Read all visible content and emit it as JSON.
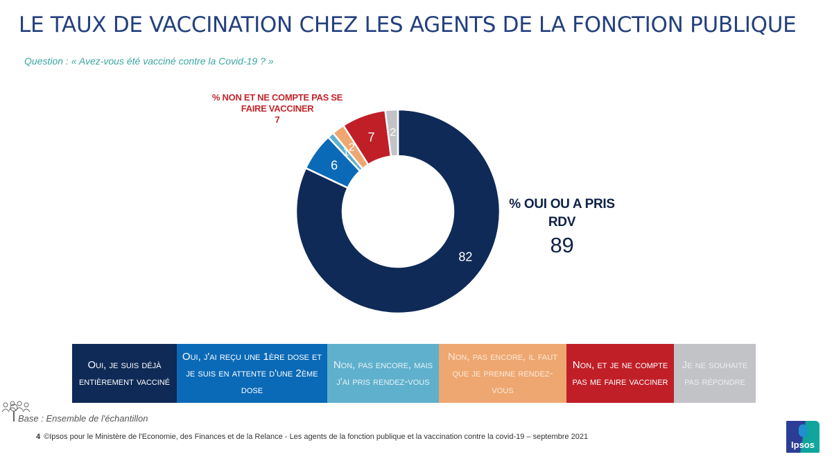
{
  "title": "LE TAUX DE VACCINATION CHEZ LES AGENTS DE LA FONCTION PUBLIQUE",
  "question": "Question : « Avez-vous été vacciné contre la Covid-19 ? »",
  "callouts": {
    "non": {
      "label_line1": "% NON ET NE COMPTE PAS SE",
      "label_line2": "FAIRE VACCINER",
      "value": "7",
      "color": "#c0272d"
    },
    "oui": {
      "label_line1": "% OUI OU A PRIS",
      "label_line2": "RDV",
      "value": "89",
      "color": "#0f2147"
    }
  },
  "chart_data": {
    "type": "pie",
    "variant": "donut",
    "title": "LE TAUX DE VACCINATION CHEZ LES AGENTS DE LA FONCTION PUBLIQUE",
    "start": "12 o'clock, clockwise",
    "categories": [
      "Oui, je suis déjà entièrement vacciné",
      "Oui, j'ai reçu une 1ère dose et je suis en attente d'une 2ème dose",
      "Non, pas encore, mais j'ai pris rendez-vous",
      "Non, pas encore, il faut que je prenne rendez-vous",
      "Non, et je ne compte pas me faire vacciner",
      "Je ne souhaite pas répondre"
    ],
    "values": [
      82,
      6,
      1,
      2,
      7,
      2
    ],
    "labels": [
      "82",
      "6",
      "1",
      "2",
      "7",
      "2"
    ],
    "colors": [
      "#0f2a56",
      "#0b6ab7",
      "#5fb0cc",
      "#eea770",
      "#c01f28",
      "#c2c3c7"
    ],
    "label_colors": [
      "#ffffff",
      "#ffffff",
      "#ffffff",
      "#ffffff",
      "#ffffff",
      "#ffffff"
    ],
    "legend_position": "bottom"
  },
  "legend": [
    {
      "text": "Oui, je suis déjà entièrement vacciné",
      "bg": "#0f2a56",
      "fg": "#ffffff"
    },
    {
      "text": "Oui, j'ai reçu une 1ère dose et je suis en attente d'une 2ème dose",
      "bg": "#0b6ab7",
      "fg": "#ffffff"
    },
    {
      "text": "Non, pas encore, mais j'ai pris rendez-vous",
      "bg": "#5fb0cc",
      "fg": "#e6f3f8"
    },
    {
      "text": "Non, pas encore, il faut que je prenne rendez-vous",
      "bg": "#eea770",
      "fg": "#fbe9da"
    },
    {
      "text": "Non, et je ne compte pas me faire vacciner",
      "bg": "#c01f28",
      "fg": "#ffffff"
    },
    {
      "text": "Je ne souhaite pas répondre",
      "bg": "#c2c3c7",
      "fg": "#eeeeef"
    }
  ],
  "base": "Base : Ensemble de l'échantillon",
  "footer": {
    "page": "4",
    "text": "©Ipsos pour le Ministère de l'Economie, des Finances et de la Relance - Les agents de la fonction publique et la vaccination contre la covid-19 – septembre 2021"
  },
  "logo": {
    "text": "Ipsos"
  }
}
